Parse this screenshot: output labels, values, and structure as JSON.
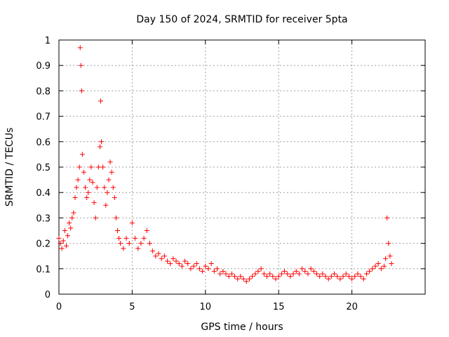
{
  "chart_data": {
    "type": "scatter",
    "title": "Day 150 of 2024, SRMTID for receiver 5pta",
    "xlabel": "GPS time / hours",
    "ylabel": "SRMTID / TECUs",
    "xlim": [
      0,
      25
    ],
    "ylim": [
      0,
      1
    ],
    "x_ticks": [
      0,
      5,
      10,
      15,
      20
    ],
    "x_tick_labels": [
      "0",
      "5",
      "10",
      "15",
      "20"
    ],
    "y_ticks": [
      0,
      0.1,
      0.2,
      0.3,
      0.4,
      0.5,
      0.6,
      0.7,
      0.8,
      0.9,
      1
    ],
    "y_tick_labels": [
      "0",
      "0.1",
      "0.2",
      "0.3",
      "0.4",
      "0.5",
      "0.6",
      "0.7",
      "0.8",
      "0.9",
      "1"
    ],
    "grid": true,
    "marker": "+",
    "color": "#ff0000",
    "series": [
      {
        "name": "SRMTID",
        "x": [
          0.0,
          0.1,
          0.2,
          0.3,
          0.4,
          0.5,
          0.6,
          0.7,
          0.8,
          0.9,
          1.0,
          1.1,
          1.2,
          1.3,
          1.4,
          1.45,
          1.5,
          1.55,
          1.6,
          1.7,
          1.8,
          1.9,
          2.0,
          2.1,
          2.2,
          2.3,
          2.4,
          2.5,
          2.6,
          2.7,
          2.8,
          2.85,
          2.9,
          3.0,
          3.1,
          3.2,
          3.3,
          3.4,
          3.5,
          3.6,
          3.7,
          3.8,
          3.9,
          4.0,
          4.1,
          4.2,
          4.4,
          4.6,
          4.8,
          5.0,
          5.2,
          5.4,
          5.6,
          5.8,
          6.0,
          6.2,
          6.4,
          6.6,
          6.8,
          7.0,
          7.2,
          7.4,
          7.6,
          7.8,
          8.0,
          8.2,
          8.4,
          8.6,
          8.8,
          9.0,
          9.2,
          9.4,
          9.6,
          9.8,
          10.0,
          10.2,
          10.4,
          10.6,
          10.8,
          11.0,
          11.2,
          11.4,
          11.6,
          11.8,
          12.0,
          12.2,
          12.4,
          12.6,
          12.8,
          13.0,
          13.2,
          13.4,
          13.6,
          13.8,
          14.0,
          14.2,
          14.4,
          14.6,
          14.8,
          15.0,
          15.2,
          15.4,
          15.6,
          15.8,
          16.0,
          16.2,
          16.4,
          16.6,
          16.8,
          17.0,
          17.2,
          17.4,
          17.6,
          17.8,
          18.0,
          18.2,
          18.4,
          18.6,
          18.8,
          19.0,
          19.2,
          19.4,
          19.6,
          19.8,
          20.0,
          20.2,
          20.4,
          20.6,
          20.8,
          21.0,
          21.2,
          21.4,
          21.6,
          21.8,
          22.0,
          22.2,
          22.3,
          22.4,
          22.5,
          22.6,
          22.7
        ],
        "y": [
          0.22,
          0.2,
          0.18,
          0.21,
          0.25,
          0.19,
          0.23,
          0.28,
          0.26,
          0.3,
          0.32,
          0.38,
          0.42,
          0.45,
          0.5,
          0.97,
          0.9,
          0.8,
          0.55,
          0.48,
          0.42,
          0.38,
          0.4,
          0.45,
          0.5,
          0.44,
          0.36,
          0.3,
          0.42,
          0.5,
          0.58,
          0.76,
          0.6,
          0.5,
          0.42,
          0.35,
          0.4,
          0.45,
          0.52,
          0.48,
          0.42,
          0.38,
          0.3,
          0.25,
          0.22,
          0.2,
          0.18,
          0.22,
          0.2,
          0.28,
          0.22,
          0.18,
          0.2,
          0.22,
          0.25,
          0.2,
          0.17,
          0.15,
          0.16,
          0.14,
          0.15,
          0.13,
          0.12,
          0.14,
          0.13,
          0.12,
          0.11,
          0.13,
          0.12,
          0.1,
          0.11,
          0.12,
          0.1,
          0.09,
          0.11,
          0.1,
          0.12,
          0.09,
          0.1,
          0.08,
          0.09,
          0.08,
          0.07,
          0.08,
          0.07,
          0.06,
          0.07,
          0.06,
          0.05,
          0.06,
          0.07,
          0.08,
          0.09,
          0.1,
          0.08,
          0.07,
          0.08,
          0.07,
          0.06,
          0.07,
          0.08,
          0.09,
          0.08,
          0.07,
          0.08,
          0.09,
          0.08,
          0.1,
          0.09,
          0.08,
          0.1,
          0.09,
          0.08,
          0.07,
          0.08,
          0.07,
          0.06,
          0.07,
          0.08,
          0.07,
          0.06,
          0.07,
          0.08,
          0.07,
          0.06,
          0.07,
          0.08,
          0.07,
          0.06,
          0.08,
          0.09,
          0.1,
          0.11,
          0.12,
          0.1,
          0.11,
          0.14,
          0.3,
          0.2,
          0.15,
          0.12
        ]
      }
    ]
  }
}
